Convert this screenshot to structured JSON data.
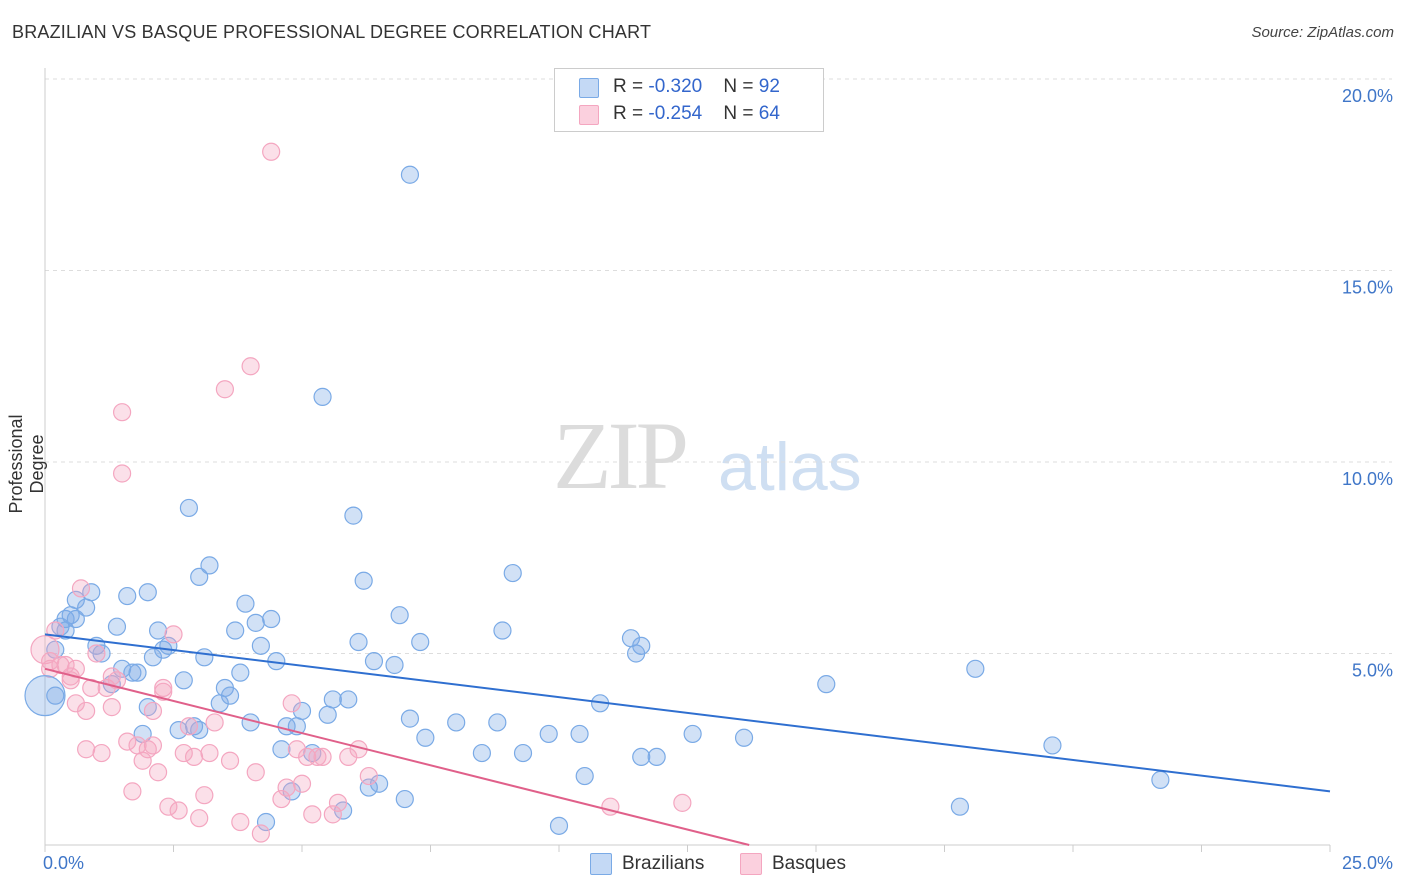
{
  "title": "BRAZILIAN VS BASQUE PROFESSIONAL DEGREE CORRELATION CHART",
  "source": "Source: ZipAtlas.com",
  "watermark": {
    "zip": "ZIP",
    "atlas": "atlas"
  },
  "legend": {
    "rows": [
      {
        "r_label": "R = ",
        "r_value": "-0.320",
        "n_label": "N = ",
        "n_value": "92"
      },
      {
        "r_label": "R = ",
        "r_value": "-0.254",
        "n_label": "N = ",
        "n_value": "64"
      }
    ]
  },
  "bottom_legend": {
    "brazilians": "Brazilians",
    "basques": "Basques"
  },
  "chart_data": {
    "type": "scatter",
    "title": "BRAZILIAN VS BASQUE PROFESSIONAL DEGREE CORRELATION CHART",
    "xlabel": "",
    "ylabel": "Professional Degree",
    "xlim": [
      0,
      25
    ],
    "ylim": [
      0,
      20
    ],
    "x_tick_labels": [
      "0.0%",
      "25.0%"
    ],
    "y_tick_labels": [
      "5.0%",
      "10.0%",
      "15.0%",
      "20.0%"
    ],
    "y_ticks": [
      5,
      10,
      15,
      20
    ],
    "series": [
      {
        "name": "Brazilians",
        "color": "#7aaae6",
        "line_color": "#2f6fd0",
        "trend": {
          "x": [
            0,
            25
          ],
          "y": [
            5.5,
            1.4
          ]
        },
        "points": [
          [
            0.2,
            3.9
          ],
          [
            0.2,
            5.1
          ],
          [
            0.3,
            5.7
          ],
          [
            0.4,
            5.6
          ],
          [
            0.4,
            5.9
          ],
          [
            0.5,
            6.0
          ],
          [
            0.6,
            5.9
          ],
          [
            0.6,
            6.4
          ],
          [
            0.8,
            6.2
          ],
          [
            0.9,
            6.6
          ],
          [
            1.0,
            5.2
          ],
          [
            1.1,
            5.0
          ],
          [
            1.3,
            4.2
          ],
          [
            1.4,
            5.7
          ],
          [
            1.5,
            4.6
          ],
          [
            1.6,
            6.5
          ],
          [
            1.7,
            4.5
          ],
          [
            1.8,
            4.5
          ],
          [
            1.9,
            2.9
          ],
          [
            2.0,
            6.6
          ],
          [
            2.1,
            4.9
          ],
          [
            2.2,
            5.6
          ],
          [
            2.3,
            5.1
          ],
          [
            2.4,
            5.2
          ],
          [
            2.6,
            3.0
          ],
          [
            2.7,
            4.3
          ],
          [
            2.8,
            8.8
          ],
          [
            2.9,
            3.1
          ],
          [
            3.0,
            7.0
          ],
          [
            3.1,
            4.9
          ],
          [
            3.2,
            7.3
          ],
          [
            3.4,
            3.7
          ],
          [
            3.5,
            4.1
          ],
          [
            3.6,
            3.9
          ],
          [
            3.7,
            5.6
          ],
          [
            3.8,
            4.5
          ],
          [
            3.9,
            6.3
          ],
          [
            4.0,
            3.2
          ],
          [
            4.1,
            5.8
          ],
          [
            4.2,
            5.2
          ],
          [
            4.3,
            0.6
          ],
          [
            4.4,
            5.9
          ],
          [
            4.5,
            4.8
          ],
          [
            4.6,
            2.5
          ],
          [
            4.7,
            3.1
          ],
          [
            4.8,
            1.4
          ],
          [
            4.9,
            3.1
          ],
          [
            5.0,
            3.5
          ],
          [
            5.2,
            2.4
          ],
          [
            5.4,
            11.7
          ],
          [
            5.5,
            3.4
          ],
          [
            5.6,
            3.8
          ],
          [
            5.8,
            0.9
          ],
          [
            5.9,
            3.8
          ],
          [
            6.0,
            8.6
          ],
          [
            6.1,
            5.3
          ],
          [
            6.2,
            6.9
          ],
          [
            6.3,
            1.5
          ],
          [
            6.4,
            4.8
          ],
          [
            6.5,
            1.6
          ],
          [
            6.8,
            4.7
          ],
          [
            6.9,
            6.0
          ],
          [
            7.0,
            1.2
          ],
          [
            7.1,
            3.3
          ],
          [
            7.3,
            5.3
          ],
          [
            7.4,
            2.8
          ],
          [
            7.1,
            17.5
          ],
          [
            8.0,
            3.2
          ],
          [
            8.5,
            2.4
          ],
          [
            8.8,
            3.2
          ],
          [
            8.9,
            5.6
          ],
          [
            9.1,
            7.1
          ],
          [
            9.3,
            2.4
          ],
          [
            9.8,
            2.9
          ],
          [
            10.0,
            0.5
          ],
          [
            10.4,
            2.9
          ],
          [
            10.5,
            1.8
          ],
          [
            10.8,
            3.7
          ],
          [
            11.4,
            5.4
          ],
          [
            11.5,
            5.0
          ],
          [
            11.6,
            5.2
          ],
          [
            11.6,
            2.3
          ],
          [
            11.9,
            2.3
          ],
          [
            12.6,
            2.9
          ],
          [
            13.6,
            2.8
          ],
          [
            15.2,
            4.2
          ],
          [
            17.8,
            1.0
          ],
          [
            18.1,
            4.6
          ],
          [
            19.6,
            2.6
          ],
          [
            21.7,
            1.7
          ],
          [
            2.0,
            3.6
          ],
          [
            3.0,
            3.0
          ]
        ]
      },
      {
        "name": "Basques",
        "color": "#f4a6c0",
        "line_color": "#e0608a",
        "trend": {
          "x": [
            0,
            13.7
          ],
          "y": [
            4.6,
            0
          ]
        },
        "points": [
          [
            0.1,
            4.8
          ],
          [
            0.1,
            4.6
          ],
          [
            0.2,
            5.6
          ],
          [
            0.3,
            4.7
          ],
          [
            0.4,
            4.7
          ],
          [
            0.5,
            4.3
          ],
          [
            0.5,
            4.4
          ],
          [
            0.6,
            3.7
          ],
          [
            0.6,
            4.6
          ],
          [
            0.7,
            6.7
          ],
          [
            0.8,
            2.5
          ],
          [
            0.8,
            3.5
          ],
          [
            0.9,
            4.1
          ],
          [
            1.0,
            5.0
          ],
          [
            1.1,
            2.4
          ],
          [
            1.2,
            4.1
          ],
          [
            1.3,
            3.6
          ],
          [
            1.3,
            4.4
          ],
          [
            1.4,
            4.3
          ],
          [
            1.5,
            11.3
          ],
          [
            1.5,
            9.7
          ],
          [
            1.6,
            2.7
          ],
          [
            1.7,
            1.4
          ],
          [
            1.8,
            2.6
          ],
          [
            1.9,
            2.2
          ],
          [
            2.0,
            2.5
          ],
          [
            2.1,
            3.5
          ],
          [
            2.1,
            2.6
          ],
          [
            2.2,
            1.9
          ],
          [
            2.3,
            4.0
          ],
          [
            2.3,
            4.1
          ],
          [
            2.4,
            1.0
          ],
          [
            2.5,
            5.5
          ],
          [
            2.6,
            0.9
          ],
          [
            2.7,
            2.4
          ],
          [
            2.8,
            3.1
          ],
          [
            2.9,
            2.3
          ],
          [
            3.0,
            0.7
          ],
          [
            3.1,
            1.3
          ],
          [
            3.2,
            2.4
          ],
          [
            3.3,
            3.2
          ],
          [
            3.5,
            11.9
          ],
          [
            3.6,
            2.2
          ],
          [
            3.8,
            0.6
          ],
          [
            4.0,
            12.5
          ],
          [
            4.1,
            1.9
          ],
          [
            4.2,
            0.3
          ],
          [
            4.4,
            18.1
          ],
          [
            4.6,
            1.2
          ],
          [
            4.7,
            1.5
          ],
          [
            4.8,
            3.7
          ],
          [
            4.9,
            2.5
          ],
          [
            5.0,
            1.6
          ],
          [
            5.1,
            2.3
          ],
          [
            5.2,
            0.8
          ],
          [
            5.3,
            2.3
          ],
          [
            5.4,
            2.3
          ],
          [
            5.6,
            0.8
          ],
          [
            5.7,
            1.1
          ],
          [
            5.9,
            2.3
          ],
          [
            6.1,
            2.5
          ],
          [
            6.3,
            1.8
          ],
          [
            11.0,
            1.0
          ],
          [
            12.4,
            1.1
          ]
        ]
      }
    ]
  }
}
